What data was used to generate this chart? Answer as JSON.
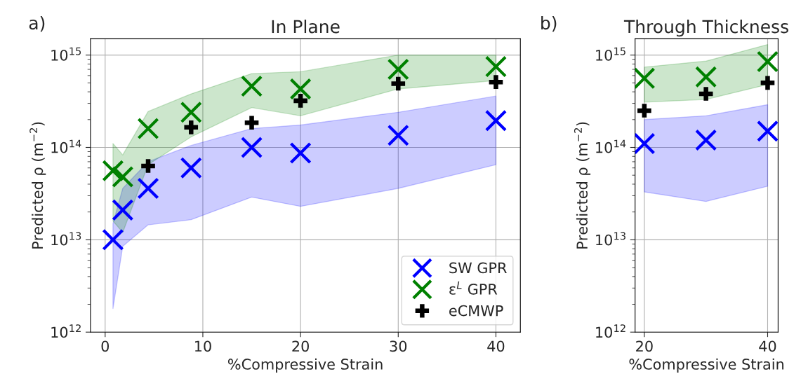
{
  "chart_data": [
    {
      "type": "scatter",
      "title": "In Plane",
      "annotations": [
        "a)"
      ],
      "xlabel": "%Compressive Strain",
      "ylabel": "Predicted ρ (m$^{−2}$)",
      "log": "y",
      "xlim": [
        -1.5,
        42.5
      ],
      "xticks": [
        0,
        10,
        20,
        30,
        40
      ],
      "ylim": [
        1000000000000.0,
        1500000000000000.0
      ],
      "yticks": [
        {
          "value": 1000000000000.0,
          "label": "10$^{12}$"
        },
        {
          "value": 10000000000000.0,
          "label": "10$^{13}$"
        },
        {
          "value": 100000000000000.0,
          "label": "10$^{14}$"
        },
        {
          "value": 1000000000000000.0,
          "label": "10$^{15}$"
        }
      ],
      "grid": true,
      "legend": "lower right",
      "series": [
        {
          "name": "SW GPR",
          "color": "#0000ff",
          "x": [
            0.8,
            1.8,
            4.4,
            8.8,
            15,
            20,
            30,
            40
          ],
          "values": [
            10000000000000.0,
            21000000000000.0,
            36000000000000.0,
            60000000000000.0,
            100000000000000.0,
            87000000000000.0,
            135000000000000.0,
            195000000000000.0
          ],
          "lower": [
            1800000000000.0,
            8500000000000.0,
            14500000000000.0,
            16500000000000.0,
            29000000000000.0,
            23000000000000.0,
            36000000000000.0,
            65000000000000.0
          ],
          "upper": [
            15000000000000.0,
            36000000000000.0,
            70000000000000.0,
            105000000000000.0,
            160000000000000.0,
            175000000000000.0,
            240000000000000.0,
            360000000000000.0
          ]
        },
        {
          "name": "ε$^{L}$ GPR",
          "color": "#008000",
          "x": [
            0.8,
            1.8,
            4.4,
            8.8,
            15,
            20,
            30,
            40
          ],
          "values": [
            56000000000000.0,
            48000000000000.0,
            160000000000000.0,
            240000000000000.0,
            460000000000000.0,
            430000000000000.0,
            700000000000000.0,
            750000000000000.0
          ],
          "lower": [
            16000000000000.0,
            12000000000000.0,
            65000000000000.0,
            130000000000000.0,
            270000000000000.0,
            220000000000000.0,
            430000000000000.0,
            530000000000000.0
          ],
          "upper": [
            110000000000000.0,
            83000000000000.0,
            245000000000000.0,
            380000000000000.0,
            630000000000000.0,
            660000000000000.0,
            1000000000000000.0,
            1000000000000000.0
          ]
        },
        {
          "name": "eCMWP",
          "color": "#000000",
          "marker": "cross",
          "x": [
            4.4,
            8.8,
            15,
            20,
            30,
            40
          ],
          "values": [
            63000000000000.0,
            165000000000000.0,
            185000000000000.0,
            320000000000000.0,
            490000000000000.0,
            510000000000000.0
          ]
        }
      ]
    },
    {
      "type": "scatter",
      "title": "Through Thickness",
      "annotations": [
        "b)"
      ],
      "xlabel": "%Compressive Strain",
      "ylabel": "Predicted ρ (m$^{−2}$)",
      "log": "y",
      "xlim": [
        18.5,
        41.7
      ],
      "xticks": [
        20,
        40
      ],
      "ylim": [
        1000000000000.0,
        1500000000000000.0
      ],
      "yticks": [
        {
          "value": 1000000000000.0,
          "label": "10$^{12}$"
        },
        {
          "value": 10000000000000.0,
          "label": "10$^{13}$"
        },
        {
          "value": 100000000000000.0,
          "label": "10$^{14}$"
        },
        {
          "value": 1000000000000000.0,
          "label": "10$^{15}$"
        }
      ],
      "grid": true,
      "series": [
        {
          "color": "#0000ff",
          "x": [
            20,
            30,
            40
          ],
          "values": [
            110000000000000.0,
            120000000000000.0,
            150000000000000.0
          ],
          "lower": [
            33000000000000.0,
            26000000000000.0,
            38000000000000.0
          ],
          "upper": [
            200000000000000.0,
            220000000000000.0,
            290000000000000.0
          ]
        },
        {
          "color": "#008000",
          "x": [
            20,
            30,
            40
          ],
          "values": [
            560000000000000.0,
            580000000000000.0,
            850000000000000.0
          ],
          "lower": [
            310000000000000.0,
            330000000000000.0,
            480000000000000.0
          ],
          "upper": [
            740000000000000.0,
            860000000000000.0,
            1300000000000000.0
          ]
        },
        {
          "color": "#000000",
          "marker": "cross",
          "x": [
            20,
            30,
            40
          ],
          "values": [
            250000000000000.0,
            380000000000000.0,
            500000000000000.0
          ]
        }
      ]
    }
  ]
}
